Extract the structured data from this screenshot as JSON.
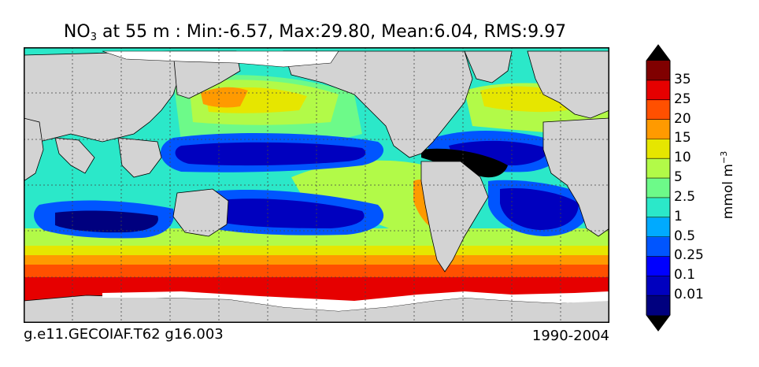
{
  "title": {
    "var_main": "NO",
    "var_sub": "3",
    "rest": " at 55 m : Min:-6.57, Max:29.80, Mean:6.04, RMS:9.97"
  },
  "footer": {
    "case_name": "g.e11.GECOIAF.T62 g16.003",
    "years": "1990-2004"
  },
  "colorbar": {
    "unit_main": "mmol m",
    "unit_sup": "−3",
    "levels": [
      "0.01",
      "0.1",
      "0.25",
      "0.5",
      "1",
      "2.5",
      "5",
      "10",
      "15",
      "20",
      "25",
      "35"
    ],
    "colors": [
      "#00007f",
      "#0000bf",
      "#0000ff",
      "#0055ff",
      "#00aaff",
      "#2be8c9",
      "#6dfa89",
      "#b2fa48",
      "#e6e600",
      "#ff9a00",
      "#ff5000",
      "#e60000",
      "#800000"
    ],
    "under_color": "#000000",
    "over_color": "#000000"
  },
  "map": {
    "land_color": "#d3d3d3",
    "ice_color": "#ffffff"
  }
}
